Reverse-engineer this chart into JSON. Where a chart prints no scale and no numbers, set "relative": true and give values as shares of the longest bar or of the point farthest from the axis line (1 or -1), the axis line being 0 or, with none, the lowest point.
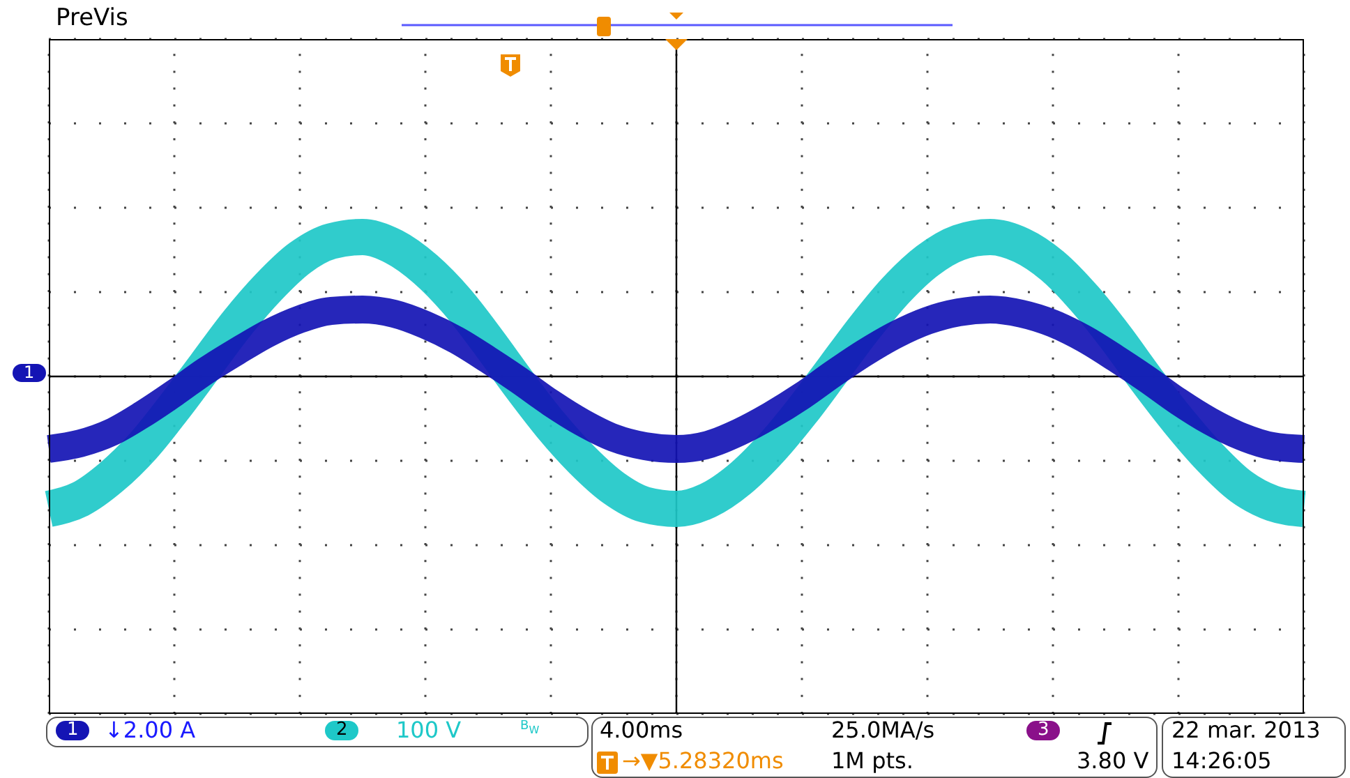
{
  "chart_data": {
    "type": "line",
    "relative": true,
    "grid": true,
    "tick_labels": false,
    "line_style": "solid",
    "marker": "none",
    "categories": [
      null,
      null,
      null,
      null,
      null,
      null,
      null,
      null,
      null,
      null,
      null,
      null,
      null,
      null,
      null,
      null,
      null,
      null,
      null,
      null,
      null,
      null,
      null,
      null,
      null,
      null,
      null,
      null,
      null,
      null,
      null,
      null,
      null,
      null,
      null,
      null,
      null,
      null,
      null,
      null,
      null
    ],
    "series": [
      {
        "color": "#1ec8c8",
        "values": [
          -0.95,
          -0.88,
          -0.72,
          -0.5,
          -0.22,
          0.08,
          0.38,
          0.64,
          0.85,
          0.97,
          1.0,
          0.93,
          0.77,
          0.54,
          0.25,
          -0.06,
          -0.35,
          -0.6,
          -0.8,
          -0.92,
          -0.95,
          -0.89,
          -0.74,
          -0.52,
          -0.25,
          0.05,
          0.35,
          0.62,
          0.83,
          0.96,
          1.0,
          0.94,
          0.79,
          0.56,
          0.28,
          -0.03,
          -0.32,
          -0.58,
          -0.79,
          -0.91,
          -0.95
        ]
      },
      {
        "color": "#1414b4",
        "values": [
          -0.52,
          -0.48,
          -0.4,
          -0.27,
          -0.12,
          0.04,
          0.18,
          0.31,
          0.41,
          0.47,
          0.48,
          0.45,
          0.37,
          0.26,
          0.12,
          -0.03,
          -0.19,
          -0.33,
          -0.44,
          -0.5,
          -0.52,
          -0.49,
          -0.4,
          -0.28,
          -0.14,
          0.02,
          0.17,
          0.3,
          0.4,
          0.46,
          0.48,
          0.45,
          0.38,
          0.27,
          0.13,
          -0.02,
          -0.18,
          -0.32,
          -0.43,
          -0.5,
          -0.52
        ]
      }
    ],
    "annotations": [
      "PreVis",
      "1",
      "1",
      "↓2.00 A",
      "2",
      "100 V",
      "B$_{W}$",
      "4.00ms",
      "25.0MA/s",
      "3",
      "3.80 V",
      "→▼5.28320ms",
      "1M pts.",
      "22 mar. 2013",
      "14:26:05"
    ]
  }
}
